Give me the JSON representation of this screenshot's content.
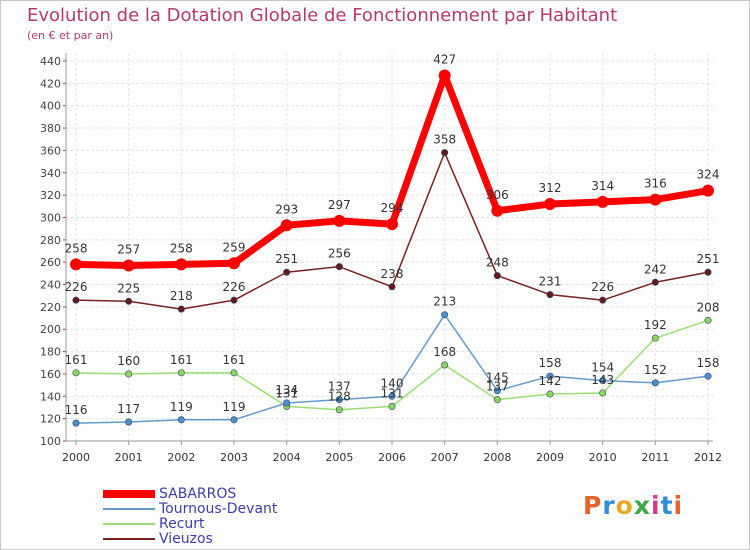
{
  "header": {
    "title": "Evolution de la Dotation Globale de Fonctionnement par Habitant",
    "subtitle": "(en € et par an)"
  },
  "logo": {
    "text": "Proxiti",
    "colors": [
      "#e8622a",
      "#2f8fd8",
      "#e8a928",
      "#3aa84a",
      "#d83a8a",
      "#2f8fd8",
      "#e8622a"
    ]
  },
  "chart_data": {
    "type": "line",
    "title": "Evolution de la Dotation Globale de Fonctionnement par Habitant",
    "subtitle": "(en € et par an)",
    "xlabel": "",
    "ylabel": "",
    "ylim": [
      100,
      440
    ],
    "ytick_step": 20,
    "grid": true,
    "legend_position": "bottom-left",
    "categories": [
      "2000",
      "2001",
      "2002",
      "2003",
      "2004",
      "2005",
      "2006",
      "2007",
      "2008",
      "2009",
      "2010",
      "2011",
      "2012"
    ],
    "series": [
      {
        "name": "SABARROS",
        "color": "#ff0000",
        "marker": "#ff0000",
        "width": 7,
        "values": [
          258,
          257,
          258,
          259,
          293,
          297,
          294,
          427,
          306,
          312,
          314,
          316,
          324
        ]
      },
      {
        "name": "Tournous-Devant",
        "color": "#6699cc",
        "marker": "#4e8fcb",
        "width": 1.5,
        "values": [
          116,
          117,
          119,
          119,
          134,
          137,
          140,
          213,
          145,
          158,
          154,
          152,
          158
        ]
      },
      {
        "name": "Recurt",
        "color": "#99dd77",
        "marker": "#8cd65a",
        "width": 1.5,
        "values": [
          161,
          160,
          161,
          161,
          131,
          128,
          131,
          168,
          137,
          142,
          143,
          192,
          208
        ]
      },
      {
        "name": "Vieuzos",
        "color": "#772222",
        "marker": "#661a1a",
        "width": 1.5,
        "values": [
          226,
          225,
          218,
          226,
          251,
          256,
          238,
          358,
          248,
          231,
          226,
          242,
          251
        ]
      }
    ]
  }
}
